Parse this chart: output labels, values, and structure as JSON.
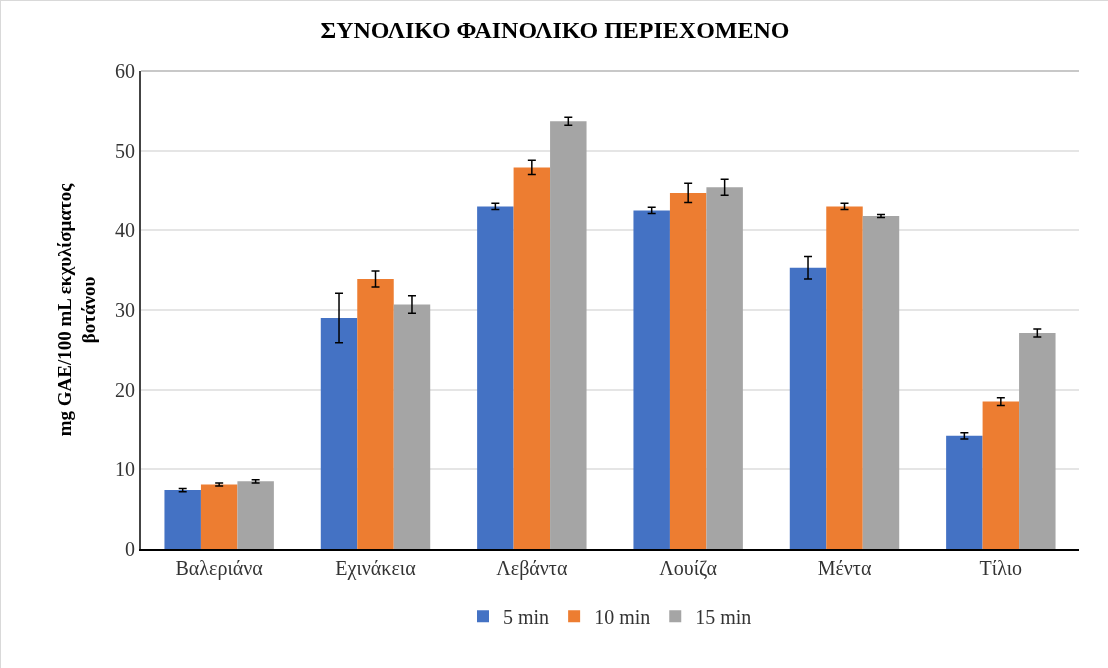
{
  "chart_data": {
    "type": "bar",
    "title": "ΣΥΝΟΛΙΚΟ ΦΑΙΝΟΛΙΚΟ ΠΕΡΙΕΧΟΜΕΝΟ",
    "ylabel": "mg GAE/100 mL εκχυλίσματος\nβοτάνου",
    "categories": [
      "Βαλεριάνα",
      "Εχινάκεια",
      "Λεβάντα",
      "Λουίζα",
      "Μέντα",
      "Τίλιο"
    ],
    "series": [
      {
        "name": "5 min",
        "color": "#4472c4",
        "values": [
          7.4,
          29.0,
          43.0,
          42.5,
          35.3,
          14.2
        ],
        "errors": [
          0.2,
          3.1,
          0.4,
          0.4,
          1.4,
          0.4
        ]
      },
      {
        "name": "10 min",
        "color": "#ed7d31",
        "values": [
          8.1,
          33.9,
          47.9,
          44.7,
          43.0,
          18.5
        ],
        "errors": [
          0.2,
          1.0,
          0.9,
          1.2,
          0.4,
          0.5
        ]
      },
      {
        "name": "15 min",
        "color": "#a5a5a5",
        "values": [
          8.5,
          30.7,
          53.7,
          45.4,
          41.8,
          27.1
        ],
        "errors": [
          0.2,
          1.1,
          0.5,
          1.0,
          0.2,
          0.5
        ]
      }
    ],
    "ylim": [
      0,
      60
    ],
    "yticks": [
      0,
      10,
      20,
      30,
      40,
      50,
      60
    ],
    "grid": "y",
    "legend": "bottom"
  }
}
